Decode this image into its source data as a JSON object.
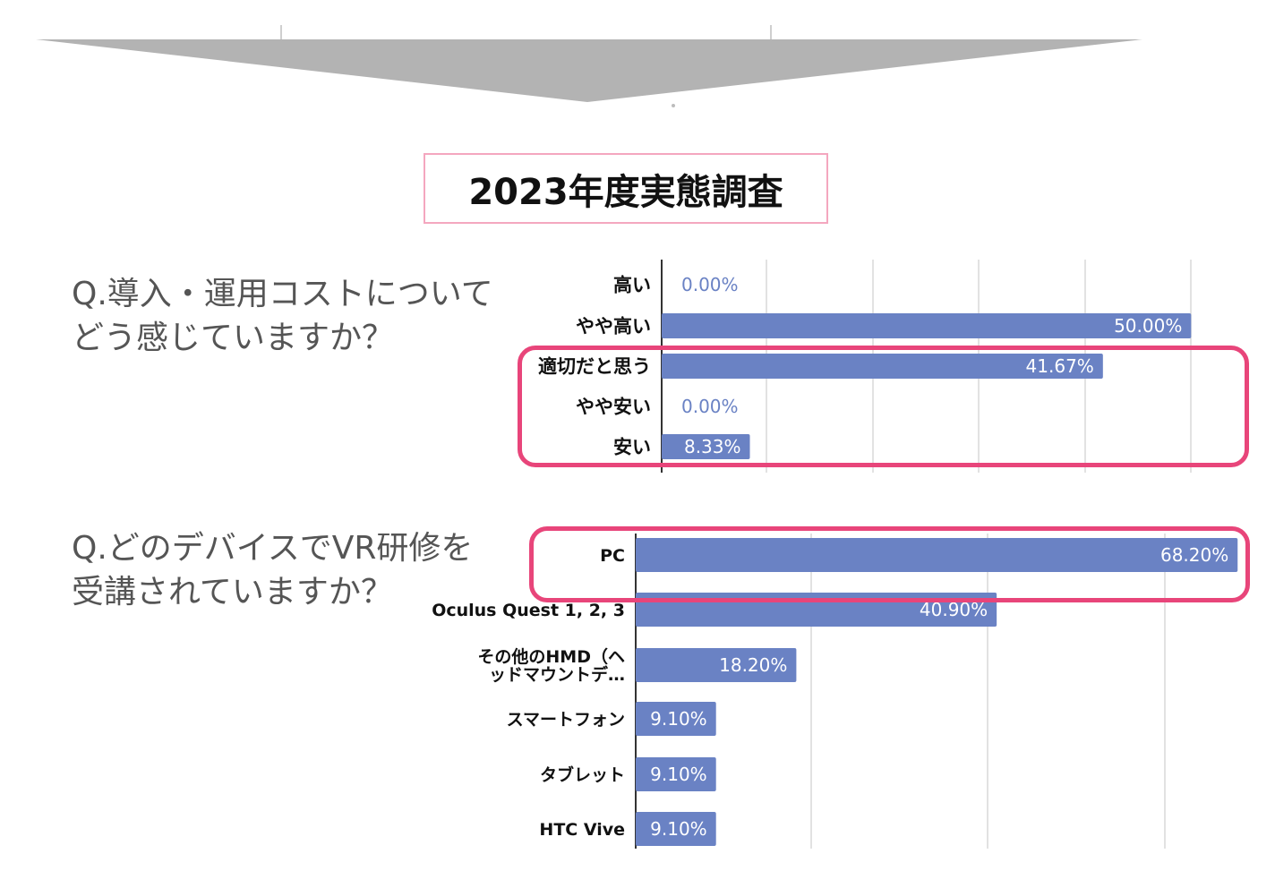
{
  "header_title": "2023年度実態調査",
  "questions": {
    "q1": "Q.導入・運用コストについて\nどう感じていますか？",
    "q2": "Q.どのデバイスでVR研修を\n受講されていますか？"
  },
  "colors": {
    "bar": "#6a82c4",
    "highlight": "#e8457a",
    "title_border": "#f4a7bf",
    "arrow": "#b3b3b3"
  },
  "chart_data": [
    {
      "type": "bar",
      "orientation": "horizontal",
      "categories": [
        "高い",
        "やや高い",
        "適切だと思う",
        "やや安い",
        "安い"
      ],
      "values": [
        0.0,
        50.0,
        41.67,
        0.0,
        8.33
      ],
      "value_labels": [
        "0.00%",
        "50.00%",
        "41.67%",
        "0.00%",
        "8.33%"
      ],
      "xlim": [
        0,
        52
      ],
      "grid": true,
      "highlighted_categories": [
        "適切だと思う",
        "やや安い",
        "安い"
      ]
    },
    {
      "type": "bar",
      "orientation": "horizontal",
      "categories": [
        "PC",
        "Oculus Quest 1, 2, 3",
        "その他のHMD（ヘッドマウントデ…",
        "スマートフォン",
        "タブレット",
        "HTC Vive"
      ],
      "category_display_lines": [
        [
          "PC"
        ],
        [
          "Oculus Quest 1, 2, 3"
        ],
        [
          "その他のHMD（ヘ",
          "ッドマウントデ…"
        ],
        [
          "スマートフォン"
        ],
        [
          "タブレット"
        ],
        [
          "HTC Vive"
        ]
      ],
      "values": [
        68.2,
        40.9,
        18.2,
        9.1,
        9.1,
        9.1
      ],
      "value_labels": [
        "68.20%",
        "40.90%",
        "18.20%",
        "9.10%",
        "9.10%",
        "9.10%"
      ],
      "xlim": [
        0,
        70
      ],
      "grid": true,
      "highlighted_categories": [
        "PC"
      ]
    }
  ]
}
